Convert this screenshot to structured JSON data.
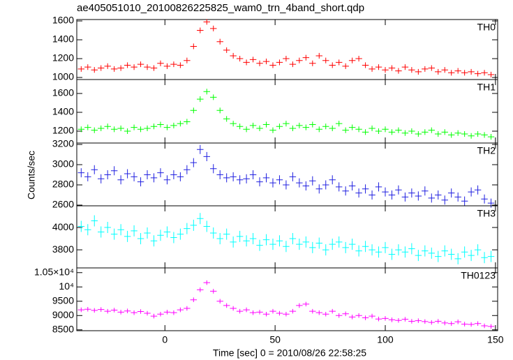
{
  "title": "ae405051010_20100826225825_wam0_trn_4band_short.qdp",
  "ylabel": "Counts/sec",
  "xlabel": "Time [sec] 0 = 2010/08/26 22:58:25",
  "chart_data": [
    {
      "type": "errorbar",
      "name": "TH0",
      "color": "#ff0000",
      "error": 30,
      "xlim": [
        -40,
        151
      ],
      "xticks": [
        0,
        50,
        100,
        150
      ],
      "ylim": [
        978,
        1615
      ],
      "yticks": [
        1000,
        1200,
        1400,
        1600
      ],
      "x": [
        -38,
        -35,
        -32,
        -29,
        -26,
        -23,
        -20,
        -17,
        -14,
        -11,
        -8,
        -5,
        -2,
        1,
        4,
        7,
        10,
        13,
        16,
        19,
        22,
        25,
        28,
        31,
        34,
        37,
        40,
        43,
        46,
        49,
        52,
        55,
        58,
        61,
        64,
        67,
        70,
        73,
        76,
        79,
        82,
        85,
        88,
        91,
        94,
        97,
        100,
        103,
        106,
        109,
        112,
        115,
        118,
        121,
        124,
        127,
        130,
        133,
        136,
        139,
        142,
        145,
        148
      ],
      "values": [
        1090,
        1110,
        1080,
        1100,
        1120,
        1090,
        1100,
        1130,
        1110,
        1140,
        1110,
        1100,
        1150,
        1120,
        1140,
        1130,
        1180,
        1330,
        1500,
        1590,
        1520,
        1380,
        1290,
        1230,
        1200,
        1160,
        1190,
        1150,
        1170,
        1130,
        1160,
        1200,
        1140,
        1180,
        1210,
        1150,
        1230,
        1180,
        1130,
        1160,
        1120,
        1180,
        1200,
        1130,
        1090,
        1110,
        1080,
        1100,
        1070,
        1110,
        1080,
        1060,
        1090,
        1100,
        1060,
        1080,
        1050,
        1070,
        1050,
        1060,
        1040,
        1050,
        1030
      ]
    },
    {
      "type": "errorbar",
      "name": "TH1",
      "color": "#00ff00",
      "error": 30,
      "xlim": [
        -40,
        151
      ],
      "xticks": [
        0,
        50,
        100,
        150
      ],
      "ylim": [
        1074,
        1748
      ],
      "yticks": [
        1200,
        1400,
        1600
      ],
      "x": [
        -38,
        -35,
        -32,
        -29,
        -26,
        -23,
        -20,
        -17,
        -14,
        -11,
        -8,
        -5,
        -2,
        1,
        4,
        7,
        10,
        13,
        16,
        19,
        22,
        25,
        28,
        31,
        34,
        37,
        40,
        43,
        46,
        49,
        52,
        55,
        58,
        61,
        64,
        67,
        70,
        73,
        76,
        79,
        82,
        85,
        88,
        91,
        94,
        97,
        100,
        103,
        106,
        109,
        112,
        115,
        118,
        121,
        124,
        127,
        130,
        133,
        136,
        139,
        142,
        145,
        148
      ],
      "values": [
        1220,
        1240,
        1210,
        1230,
        1250,
        1220,
        1230,
        1200,
        1240,
        1220,
        1230,
        1250,
        1270,
        1240,
        1260,
        1280,
        1300,
        1420,
        1540,
        1620,
        1560,
        1420,
        1330,
        1280,
        1250,
        1220,
        1260,
        1230,
        1270,
        1210,
        1250,
        1280,
        1230,
        1260,
        1240,
        1270,
        1220,
        1250,
        1230,
        1280,
        1210,
        1240,
        1220,
        1190,
        1230,
        1200,
        1220,
        1190,
        1210,
        1180,
        1200,
        1170,
        1190,
        1210,
        1170,
        1190,
        1160,
        1180,
        1170,
        1150,
        1170,
        1160,
        1140
      ]
    },
    {
      "type": "errorbar",
      "name": "TH2",
      "color": "#2020e0",
      "error": 45,
      "xlim": [
        -40,
        151
      ],
      "xticks": [
        0,
        50,
        100,
        150
      ],
      "ylim": [
        2593,
        3214
      ],
      "yticks": [
        2600,
        2800,
        3000,
        3200
      ],
      "x": [
        -38,
        -35,
        -32,
        -29,
        -26,
        -23,
        -20,
        -17,
        -14,
        -11,
        -8,
        -5,
        -2,
        1,
        4,
        7,
        10,
        13,
        16,
        19,
        22,
        25,
        28,
        31,
        34,
        37,
        40,
        43,
        46,
        49,
        52,
        55,
        58,
        61,
        64,
        67,
        70,
        73,
        76,
        79,
        82,
        85,
        88,
        91,
        94,
        97,
        100,
        103,
        106,
        109,
        112,
        115,
        118,
        121,
        124,
        127,
        130,
        133,
        136,
        139,
        142,
        145,
        148
      ],
      "values": [
        2920,
        2880,
        2950,
        2860,
        2900,
        2940,
        2850,
        2910,
        2880,
        2830,
        2900,
        2870,
        2920,
        2850,
        2900,
        2880,
        2950,
        3020,
        3150,
        3080,
        2960,
        2900,
        2870,
        2880,
        2850,
        2860,
        2900,
        2830,
        2870,
        2820,
        2850,
        2800,
        2880,
        2820,
        2790,
        2840,
        2760,
        2800,
        2850,
        2780,
        2740,
        2790,
        2720,
        2760,
        2700,
        2780,
        2730,
        2700,
        2750,
        2680,
        2720,
        2690,
        2740,
        2670,
        2700,
        2650,
        2720,
        2680,
        2640,
        2730,
        2750,
        2660,
        2620
      ]
    },
    {
      "type": "errorbar",
      "name": "TH3",
      "color": "#00ffff",
      "error": 50,
      "xlim": [
        -40,
        151
      ],
      "xticks": [
        0,
        50,
        100,
        150
      ],
      "ylim": [
        3638,
        4194
      ],
      "yticks": [
        3800,
        4000
      ],
      "x": [
        -38,
        -35,
        -32,
        -29,
        -26,
        -23,
        -20,
        -17,
        -14,
        -11,
        -8,
        -5,
        -2,
        1,
        4,
        7,
        10,
        13,
        16,
        19,
        22,
        25,
        28,
        31,
        34,
        37,
        40,
        43,
        46,
        49,
        52,
        55,
        58,
        61,
        64,
        67,
        70,
        73,
        76,
        79,
        82,
        85,
        88,
        91,
        94,
        97,
        100,
        103,
        106,
        109,
        112,
        115,
        118,
        121,
        124,
        127,
        130,
        133,
        136,
        139,
        142,
        145,
        148
      ],
      "values": [
        4010,
        3980,
        4060,
        3960,
        4000,
        3940,
        3980,
        3920,
        3970,
        3900,
        3950,
        3880,
        3930,
        3960,
        3910,
        3940,
        3990,
        4020,
        4080,
        4010,
        3950,
        3900,
        3940,
        3870,
        3920,
        3880,
        3900,
        3840,
        3890,
        3850,
        3880,
        3830,
        3900,
        3850,
        3870,
        3820,
        3860,
        3800,
        3850,
        3870,
        3820,
        3850,
        3790,
        3830,
        3800,
        3780,
        3820,
        3760,
        3800,
        3780,
        3810,
        3750,
        3790,
        3770,
        3740,
        3790,
        3760,
        3720,
        3780,
        3750,
        3800,
        3730,
        3740
      ]
    },
    {
      "type": "errorbar",
      "name": "TH0123",
      "color": "#ff00ff",
      "error": 80,
      "xlim": [
        -40,
        151
      ],
      "xticks": [
        0,
        50,
        100,
        150
      ],
      "ylim": [
        8470,
        10665
      ],
      "yticks": [
        8500,
        9000,
        9500,
        {
          "value": 10000,
          "label": "10⁴"
        },
        {
          "value": 10500,
          "label": "1.05×10⁴"
        }
      ],
      "x": [
        -38,
        -35,
        -32,
        -29,
        -26,
        -23,
        -20,
        -17,
        -14,
        -11,
        -8,
        -5,
        -2,
        1,
        4,
        7,
        10,
        13,
        16,
        19,
        22,
        25,
        28,
        31,
        34,
        37,
        40,
        43,
        46,
        49,
        52,
        55,
        58,
        61,
        64,
        67,
        70,
        73,
        76,
        79,
        82,
        85,
        88,
        91,
        94,
        97,
        100,
        103,
        106,
        109,
        112,
        115,
        118,
        121,
        124,
        127,
        130,
        133,
        136,
        139,
        142,
        145,
        148
      ],
      "values": [
        9200,
        9220,
        9180,
        9210,
        9150,
        9190,
        9120,
        9160,
        9100,
        9140,
        9080,
        8980,
        9050,
        9120,
        9100,
        9200,
        9250,
        9550,
        9900,
        10150,
        9850,
        9500,
        9350,
        9250,
        9150,
        9200,
        9100,
        9120,
        9050,
        9150,
        9080,
        9050,
        9150,
        9350,
        9400,
        9150,
        9100,
        9050,
        9150,
        9000,
        9060,
        8950,
        9000,
        8920,
        8980,
        8880,
        8900,
        8850,
        8830,
        8870,
        8800,
        8820,
        8790,
        8760,
        8800,
        8740,
        8720,
        8780,
        8700,
        8690,
        8720,
        8640,
        8620
      ]
    }
  ]
}
